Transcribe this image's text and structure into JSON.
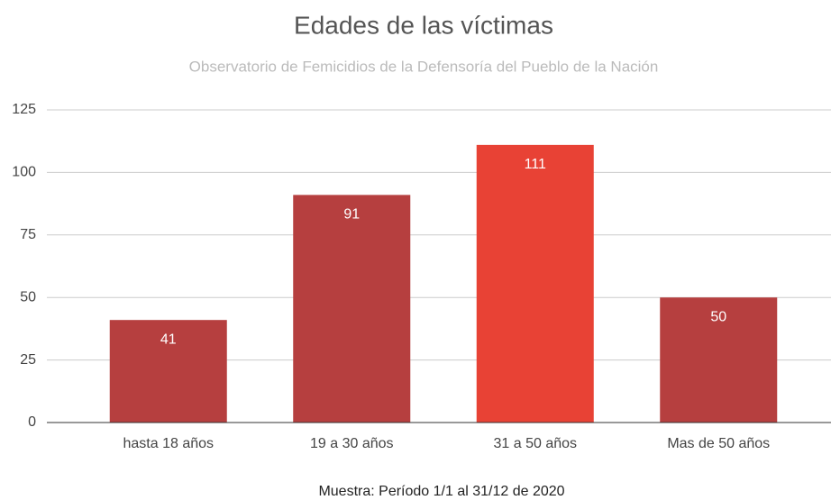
{
  "chart_data": {
    "type": "bar",
    "title": "Edades de las víctimas",
    "subtitle": "Observatorio de Femicidios de la Defensoría del Pueblo de la Nación",
    "x_label": "Muestra: Período 1/1 al 31/12 de 2020",
    "categories": [
      "hasta 18 años",
      "19 a 30 años",
      "31 a 50 años",
      "Mas de 50 años"
    ],
    "values": [
      41,
      91,
      111,
      50
    ],
    "colors": [
      "#b63f3f",
      "#b63f3f",
      "#e84235",
      "#b63f3f"
    ],
    "ylim": [
      0,
      125
    ],
    "yticks": [
      0,
      25,
      50,
      75,
      100,
      125
    ],
    "grid": true
  }
}
